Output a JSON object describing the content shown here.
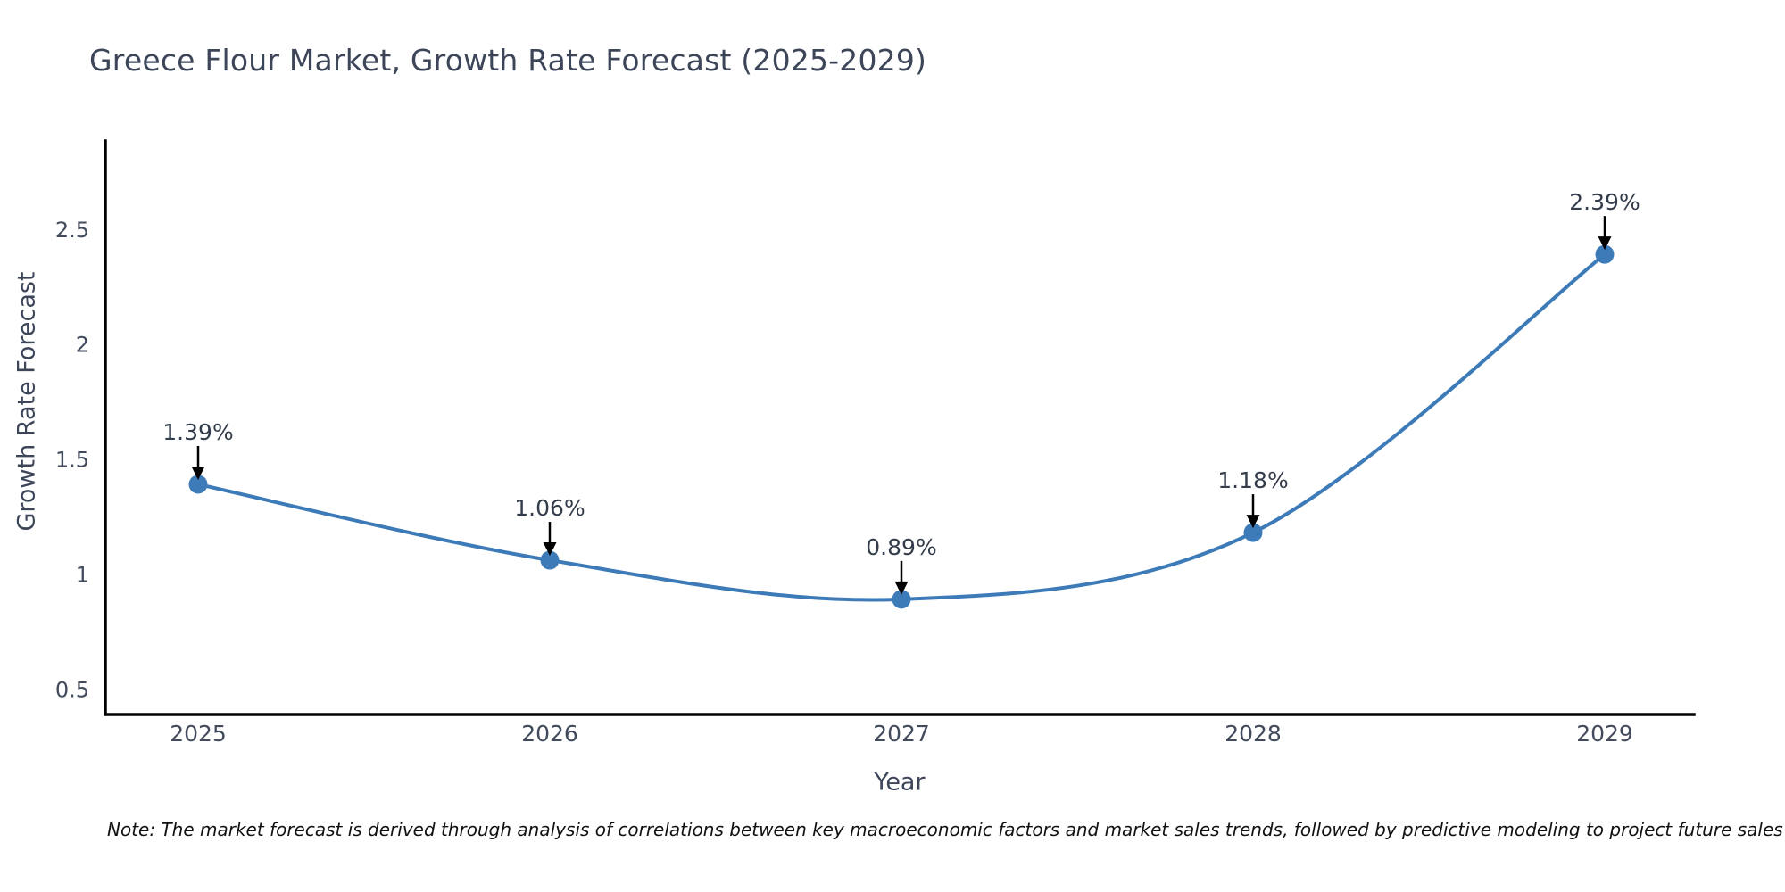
{
  "chart_data": {
    "type": "line",
    "title": "Greece Flour Market, Growth Rate Forecast (2025-2029)",
    "xlabel": "Year",
    "ylabel": "Growth Rate Forecast",
    "categories": [
      "2025",
      "2026",
      "2027",
      "2028",
      "2029"
    ],
    "values": [
      1.39,
      1.06,
      0.89,
      1.18,
      2.39
    ],
    "point_labels": [
      "1.39%",
      "1.06%",
      "0.89%",
      "1.18%",
      "2.39%"
    ],
    "y_ticks": [
      0.5,
      1,
      1.5,
      2,
      2.5
    ],
    "ylim": [
      0.39,
      2.88
    ],
    "grid": false,
    "legend_position": "none",
    "curve": "spline",
    "line_color": "#3d7ab8",
    "marker_color": "#3d7ab8",
    "axis_color": "#000000",
    "tick_color": "#424b5c",
    "annotation_text_color": "#333c4a",
    "annotation_arrow_color": "#000000"
  },
  "note": "Note: The market forecast is derived through analysis of correlations between key macroeconomic factors and market sales trends, followed by predictive modeling to project future sales",
  "colors": {
    "background": "#ffffff",
    "title": "#3d4659"
  }
}
